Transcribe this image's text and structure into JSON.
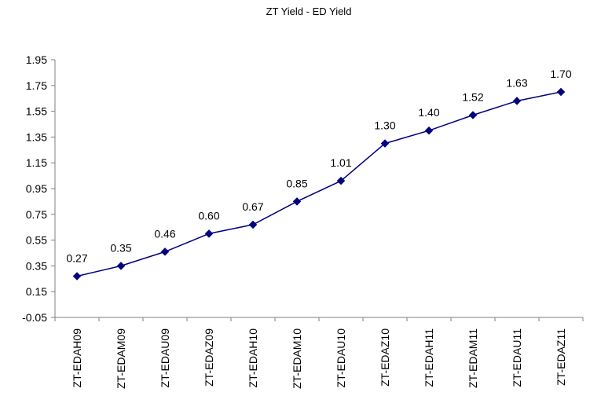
{
  "chart_data": {
    "type": "line",
    "title": "ZT Yield - ED Yield",
    "xlabel": "",
    "ylabel": "",
    "categories": [
      "ZT-EDAH09",
      "ZT-EDAM09",
      "ZT-EDAU09",
      "ZT-EDAZ09",
      "ZT-EDAH10",
      "ZT-EDAM10",
      "ZT-EDAU10",
      "ZT-EDAZ10",
      "ZT-EDAH11",
      "ZT-EDAM11",
      "ZT-EDAU11",
      "ZT-EDAZ11"
    ],
    "series": [
      {
        "values": [
          0.27,
          0.35,
          0.46,
          0.6,
          0.67,
          0.85,
          1.01,
          1.3,
          1.4,
          1.52,
          1.63,
          1.7
        ],
        "data_labels": [
          "0.27",
          "0.35",
          "0.46",
          "0.60",
          "0.67",
          "0.85",
          "1.01",
          "1.30",
          "1.40",
          "1.52",
          "1.63",
          "1.70"
        ],
        "color": "#000080"
      }
    ],
    "ylim": [
      -0.05,
      1.95
    ],
    "yticks": [
      -0.05,
      0.15,
      0.35,
      0.55,
      0.75,
      0.95,
      1.15,
      1.35,
      1.55,
      1.75,
      1.95
    ],
    "ytick_labels": [
      "-0.05",
      "0.15",
      "0.35",
      "0.55",
      "0.75",
      "0.95",
      "1.15",
      "1.35",
      "1.55",
      "1.75",
      "1.95"
    ],
    "grid": false,
    "legend": "none",
    "marker": "diamond",
    "axis_color": "#808080"
  }
}
